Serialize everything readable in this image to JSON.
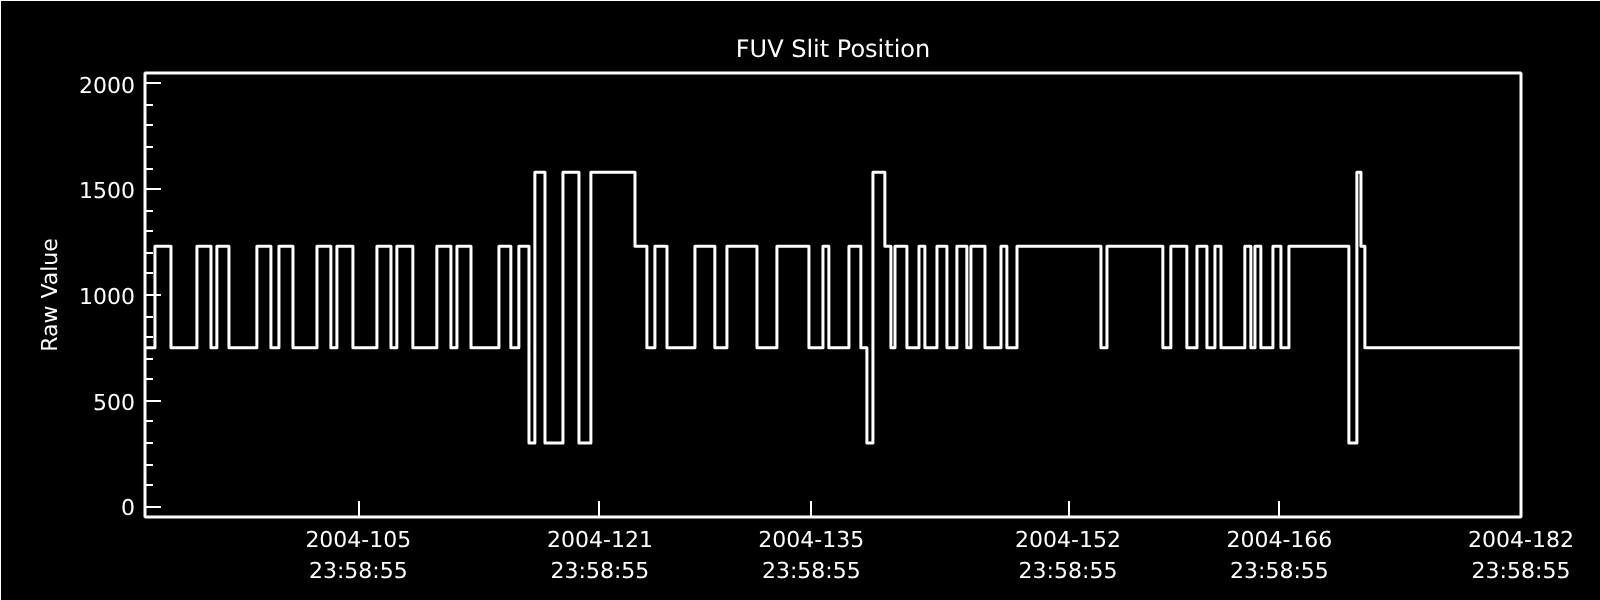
{
  "chart_data": {
    "type": "step",
    "title": "FUV Slit Position",
    "ylabel": "Raw Value",
    "x": [
      "2004-03-31T20:53",
      "2004-04-01T12:43",
      "2004-04-02T14:10",
      "2004-04-04T07:26",
      "2004-04-05T05:46",
      "2004-04-05T15:07",
      "2004-04-06T10:19",
      "2004-04-08T06:43",
      "2004-04-09T05:02",
      "2004-04-09T17:46",
      "2004-04-10T16:05",
      "2004-04-12T06:14",
      "2004-04-13T04:19",
      "2004-04-13T13:55",
      "2004-04-14T15:22",
      "2004-04-16T05:31",
      "2004-04-17T03:50",
      "2004-04-17T13:12",
      "2004-04-18T14:38",
      "2004-04-20T04:48",
      "2004-04-21T03:07",
      "2004-04-21T12:43",
      "2004-04-22T11:02",
      "2004-04-24T07:26",
      "2004-04-25T02:24",
      "2004-04-25T15:07",
      "2004-04-26T07:12",
      "2004-04-26T16:34",
      "2004-04-27T08:38",
      "2004-04-28T13:12",
      "2004-04-29T14:38",
      "2004-04-30T09:36",
      "2004-05-03T07:41",
      "2004-05-04T02:38",
      "2004-05-04T15:22",
      "2004-05-05T10:34",
      "2004-05-07T06:58",
      "2004-05-08T14:38",
      "2004-05-09T09:50",
      "2004-05-11T09:36",
      "2004-05-12T17:17",
      "2004-05-14T20:10",
      "2004-05-15T18:29",
      "2004-05-16T03:50",
      "2004-05-17T11:46",
      "2004-05-18T06:43",
      "2004-05-18T16:19",
      "2004-05-19T01:55",
      "2004-05-19T20:53",
      "2004-05-20T06:29",
      "2004-05-20T12:58",
      "2004-05-21T07:55",
      "2004-05-22T03:07",
      "2004-05-22T12:29",
      "2004-05-23T07:41",
      "2004-05-23T23:31",
      "2004-05-24T15:22",
      "2004-05-25T07:12",
      "2004-05-25T13:41",
      "2004-05-26T12:00",
      "2004-05-27T13:26",
      "2004-05-27T22:48",
      "2004-05-28T14:53",
      "2004-06-03T04:19",
      "2004-06-03T13:55",
      "2004-06-07T06:43",
      "2004-06-07T19:26",
      "2004-06-08T20:53",
      "2004-06-09T12:58",
      "2004-06-10T04:48",
      "2004-06-10T17:31",
      "2004-06-11T03:07",
      "2004-06-12T17:02",
      "2004-06-13T02:38",
      "2004-06-13T09:07",
      "2004-06-13T18:29",
      "2004-06-14T13:41",
      "2004-06-15T02:24",
      "2004-06-15T15:07",
      "2004-06-19T14:24",
      "2004-06-20T03:07",
      "2004-06-20T09:36",
      "2004-06-20T15:50",
      "2004-06-30T23:59"
    ],
    "series": [
      {
        "color": "#ffffff",
        "values": [
          750,
          1230,
          750,
          1230,
          750,
          1230,
          750,
          1230,
          750,
          1230,
          750,
          1230,
          750,
          1230,
          750,
          1230,
          750,
          1230,
          750,
          1230,
          750,
          1230,
          750,
          1230,
          750,
          1230,
          300,
          1580,
          300,
          1580,
          300,
          1580,
          1230,
          750,
          1230,
          750,
          1230,
          750,
          1230,
          750,
          1230,
          750,
          1230,
          750,
          1230,
          750,
          300,
          1580,
          1230,
          750,
          1230,
          750,
          1230,
          750,
          1230,
          750,
          1230,
          750,
          1230,
          750,
          1230,
          750,
          1230,
          750,
          1230,
          750,
          1230,
          750,
          1230,
          750,
          1230,
          750,
          1230,
          750,
          1230,
          750,
          1230,
          750,
          1230,
          300,
          1580,
          1230,
          750,
          750
        ]
      }
    ],
    "xlim": [
      "2004-03-31T20:53",
      "2004-06-30T23:59"
    ],
    "ylim": [
      -50,
      2050
    ],
    "xticks": [
      {
        "value": "2004-04-14T23:59",
        "label": "2004-105\n23:58:55"
      },
      {
        "value": "2004-04-30T23:59",
        "label": "2004-121\n23:58:55"
      },
      {
        "value": "2004-05-14T23:59",
        "label": "2004-135\n23:58:55"
      },
      {
        "value": "2004-05-31T23:59",
        "label": "2004-152\n23:58:55"
      },
      {
        "value": "2004-06-14T23:59",
        "label": "2004-166\n23:58:55"
      },
      {
        "value": "2004-06-30T23:59",
        "label": "2004-182\n23:58:55"
      }
    ],
    "yticks": [
      0,
      500,
      1000,
      1500,
      2000
    ],
    "grid": false
  }
}
